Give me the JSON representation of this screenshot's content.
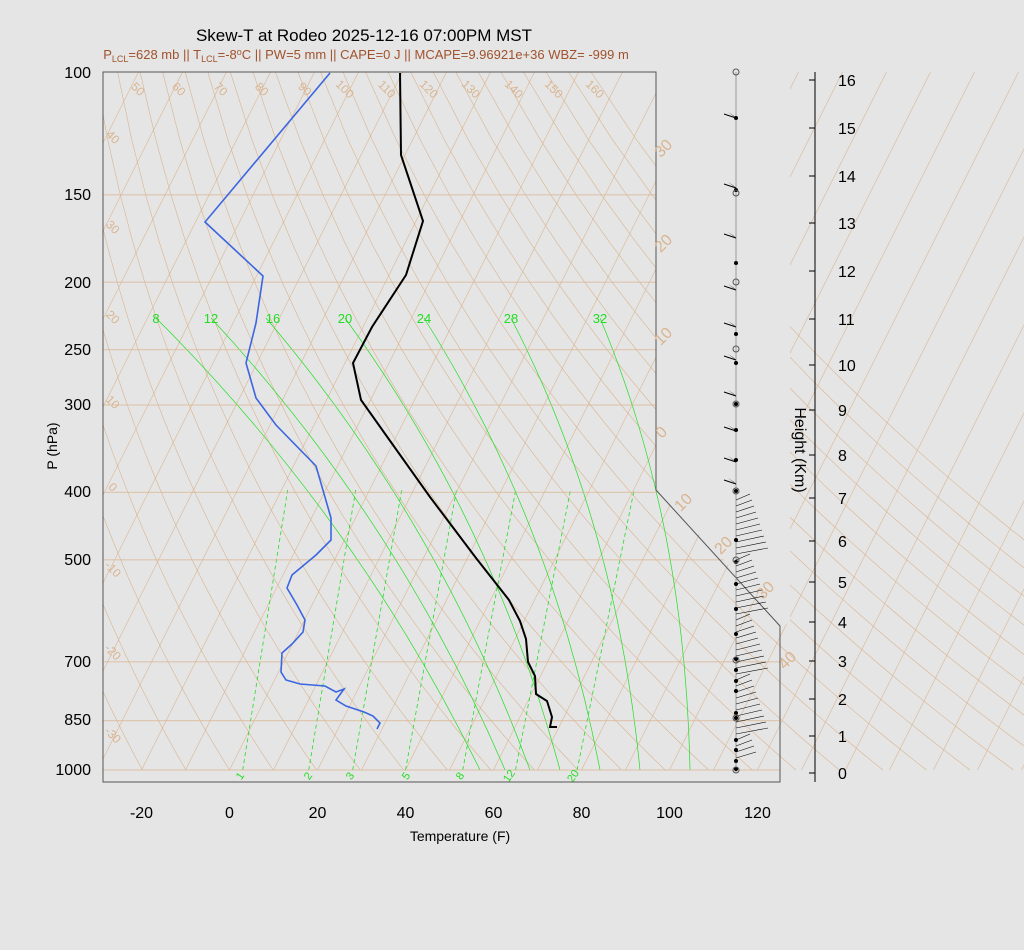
{
  "title": "Skew-T at Rodeo 2025-12-16 07:00PM MST",
  "subtitle": {
    "p_lcl": "628 mb",
    "t_lcl": "-8",
    "deg_unit": "C",
    "pw": "PW=5 mm",
    "cape": "CAPE=0 J",
    "mcape": "MCAPE=9.96921e+36",
    "wbz": "WBZ= -999 m",
    "sep": " || "
  },
  "colors": {
    "temperature": "#000000",
    "dewpoint": "#3b66e0",
    "isotherm": "#d9b48f",
    "subtitle": "#a0522d",
    "mixing_ratio": "#22dd22",
    "panel": "#e5e5e5"
  },
  "chart_data": {
    "type": "line",
    "xlabel": "Temperature (F)",
    "ylabel": "P (hPa)",
    "y2label": "Height (Km)",
    "x_ticks": [
      -20,
      0,
      20,
      40,
      60,
      80,
      100,
      120
    ],
    "pressure_ticks": [
      100,
      150,
      200,
      250,
      300,
      400,
      500,
      700,
      850,
      1000
    ],
    "height_ticks": [
      0,
      1,
      2,
      3,
      4,
      5,
      6,
      7,
      8,
      9,
      10,
      11,
      12,
      13,
      14,
      15,
      16
    ],
    "y_scale": "log-pressure",
    "skewed_isotherm_labels": [
      50,
      60,
      70,
      80,
      90,
      100,
      110,
      120,
      130,
      140,
      150,
      160
    ],
    "left_isotherm_labels": [
      40,
      30,
      20,
      10,
      0,
      -10,
      -20,
      -30
    ],
    "right_isotherm_labels": [
      30,
      20,
      10,
      0,
      10,
      20,
      30,
      40
    ],
    "mixing_ratio_top_labels": [
      8,
      12,
      16,
      20,
      24,
      28,
      32
    ],
    "mixing_ratio_bottom_labels": [
      1,
      2,
      3,
      5,
      8,
      12,
      20
    ],
    "series": [
      {
        "name": "Temperature",
        "points": [
          [
            100,
            40
          ],
          [
            130,
            40
          ],
          [
            160,
            44
          ],
          [
            200,
            40
          ],
          [
            240,
            32
          ],
          [
            270,
            28
          ],
          [
            300,
            30
          ],
          [
            400,
            45
          ],
          [
            500,
            56
          ],
          [
            580,
            63
          ],
          [
            620,
            66
          ],
          [
            680,
            67
          ],
          [
            700,
            68
          ],
          [
            720,
            69
          ],
          [
            770,
            70
          ],
          [
            800,
            72
          ],
          [
            830,
            73
          ],
          [
            870,
            74
          ],
          [
            880,
            72
          ]
        ]
      },
      {
        "name": "Dewpoint",
        "points": [
          [
            100,
            20
          ],
          [
            160,
            -5
          ],
          [
            200,
            8
          ],
          [
            250,
            7
          ],
          [
            270,
            4
          ],
          [
            300,
            6
          ],
          [
            360,
            18
          ],
          [
            450,
            24
          ],
          [
            490,
            23
          ],
          [
            540,
            15
          ],
          [
            580,
            14
          ],
          [
            640,
            17
          ],
          [
            690,
            15
          ],
          [
            730,
            13
          ],
          [
            760,
            15
          ],
          [
            790,
            24
          ],
          [
            800,
            26
          ],
          [
            820,
            24
          ],
          [
            840,
            28
          ],
          [
            870,
            33
          ],
          [
            880,
            34
          ]
        ]
      }
    ]
  }
}
